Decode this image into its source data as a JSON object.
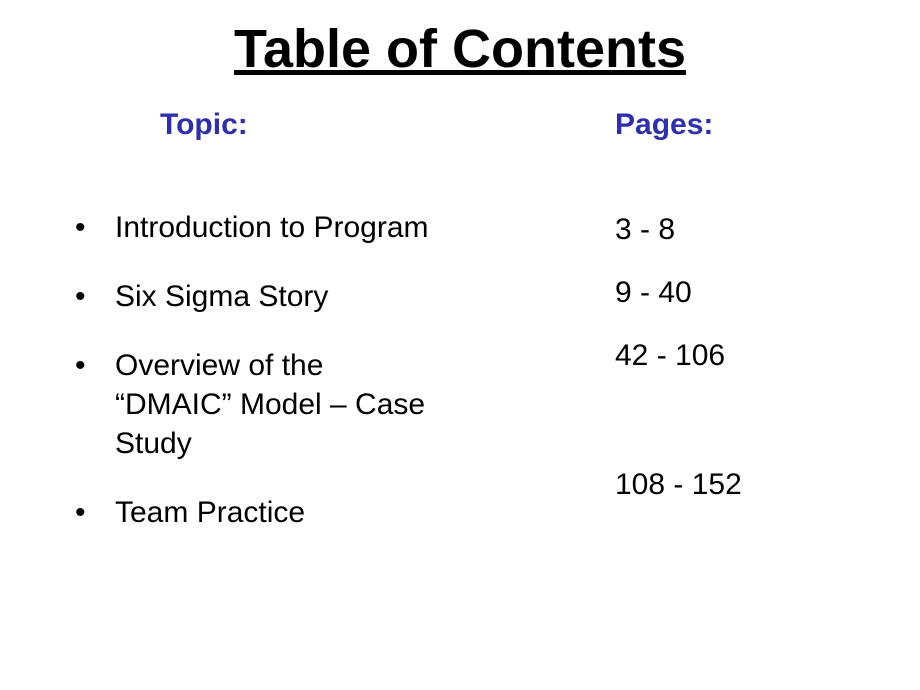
{
  "title": "Table of Contents",
  "headers": {
    "topic": "Topic:",
    "pages": "Pages:"
  },
  "topics": [
    "Introduction to Program",
    "Six Sigma Story",
    "Overview of the “DMAIC” Model – Case Study",
    "Team Practice"
  ],
  "pages": [
    "3 - 8",
    "9 - 40",
    "42 - 106",
    "108 - 152"
  ],
  "colors": {
    "title": "#000000",
    "header": "#2e2eb3",
    "body": "#000000",
    "background": "#ffffff"
  },
  "fonts": {
    "title_size": 54,
    "header_size": 30,
    "body_size": 30
  }
}
